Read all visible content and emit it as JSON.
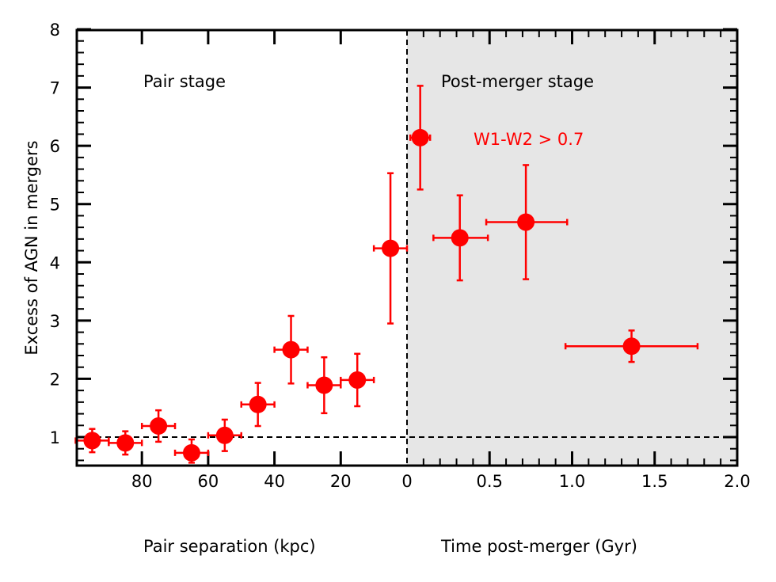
{
  "chart_data": {
    "type": "scatter",
    "ylabel": "Excess of AGN in mergers",
    "ylim": [
      0.55,
      8
    ],
    "yticks": [
      "1",
      "2",
      "3",
      "4",
      "5",
      "6",
      "7",
      "8"
    ],
    "reference_line_y": 1,
    "stage_divider_label_x": 0,
    "panels": [
      {
        "name": "pair",
        "xlabel": "Pair separation (kpc)",
        "xlim": [
          100,
          0
        ],
        "xticks": [
          "80",
          "60",
          "40",
          "20",
          "0"
        ],
        "stage_label": "Pair stage",
        "background": "#ffffff"
      },
      {
        "name": "post-merger",
        "xlabel": "Time post-merger (Gyr)",
        "xlim": [
          0,
          2.0
        ],
        "xticks": [
          "0.5",
          "1.0",
          "1.5",
          "2.0"
        ],
        "stage_label": "Post-merger stage",
        "background": "#e6e6e6"
      }
    ],
    "series": [
      {
        "name": "W1-W2 > 0.7",
        "color": "#ff0000",
        "pair_points": [
          {
            "x": 95,
            "y": 0.94,
            "xerr": 5,
            "yerr_lo": 0.2,
            "yerr_hi": 0.2
          },
          {
            "x": 85,
            "y": 0.9,
            "xerr": 5,
            "yerr_lo": 0.2,
            "yerr_hi": 0.2
          },
          {
            "x": 75,
            "y": 1.19,
            "xerr": 5,
            "yerr_lo": 0.27,
            "yerr_hi": 0.27
          },
          {
            "x": 65,
            "y": 0.73,
            "xerr": 5,
            "yerr_lo": 0.17,
            "yerr_hi": 0.23
          },
          {
            "x": 55,
            "y": 1.03,
            "xerr": 5,
            "yerr_lo": 0.27,
            "yerr_hi": 0.27
          },
          {
            "x": 45,
            "y": 1.56,
            "xerr": 5,
            "yerr_lo": 0.37,
            "yerr_hi": 0.37
          },
          {
            "x": 35,
            "y": 2.5,
            "xerr": 5,
            "yerr_lo": 0.58,
            "yerr_hi": 0.58
          },
          {
            "x": 25,
            "y": 1.89,
            "xerr": 5,
            "yerr_lo": 0.48,
            "yerr_hi": 0.48
          },
          {
            "x": 15,
            "y": 1.98,
            "xerr": 5,
            "yerr_lo": 0.45,
            "yerr_hi": 0.45
          },
          {
            "x": 5,
            "y": 4.24,
            "xerr": 5,
            "yerr_lo": 1.29,
            "yerr_hi": 1.29
          }
        ],
        "post_points": [
          {
            "x": 0.08,
            "y": 6.14,
            "xlo": 0.02,
            "xhi": 0.14,
            "yerr_lo": 0.89,
            "yerr_hi": 0.89
          },
          {
            "x": 0.32,
            "y": 4.42,
            "xlo": 0.16,
            "xhi": 0.49,
            "yerr_lo": 0.73,
            "yerr_hi": 0.73
          },
          {
            "x": 0.72,
            "y": 4.69,
            "xlo": 0.48,
            "xhi": 0.97,
            "yerr_lo": 0.98,
            "yerr_hi": 0.98
          },
          {
            "x": 1.36,
            "y": 2.56,
            "xlo": 0.96,
            "xhi": 1.76,
            "yerr_lo": 0.27,
            "yerr_hi": 0.27
          }
        ]
      }
    ]
  }
}
